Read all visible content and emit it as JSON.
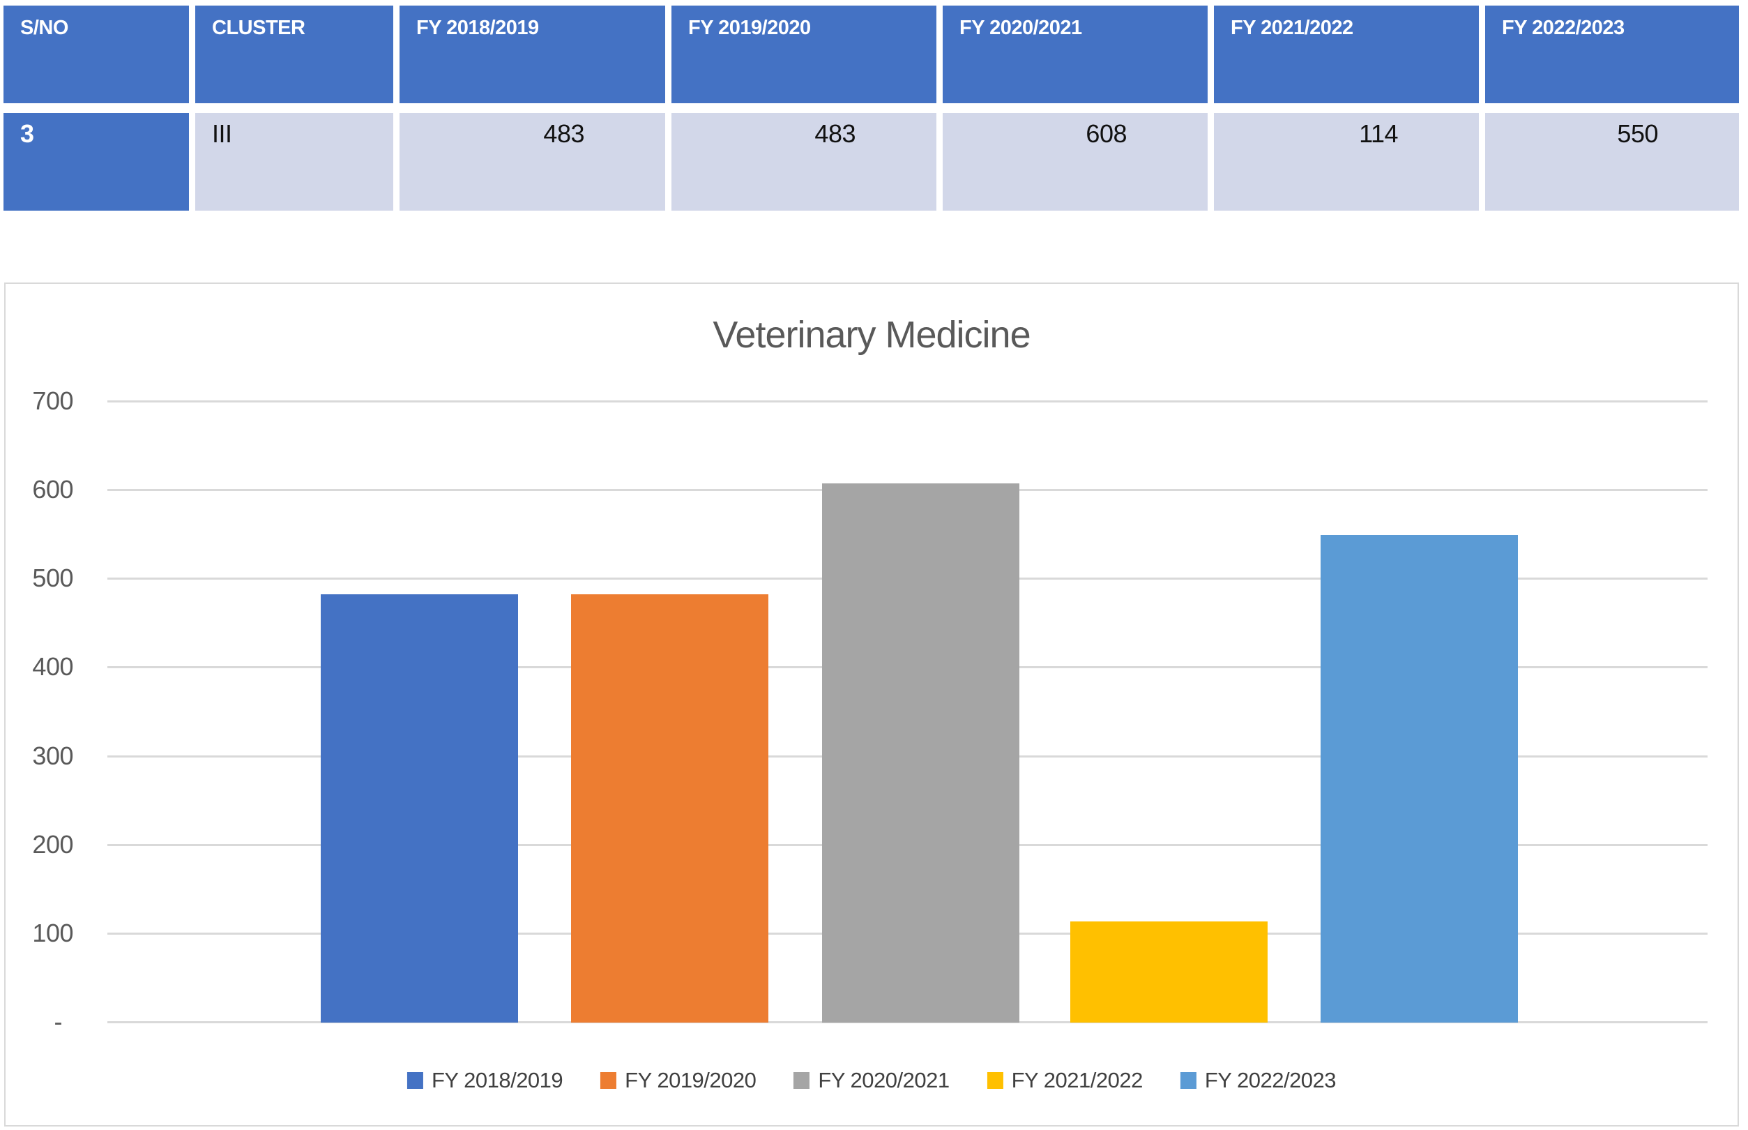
{
  "table": {
    "headers": [
      "S/NO",
      "CLUSTER",
      "FY 2018/2019",
      "FY 2019/2020",
      "FY 2020/2021",
      "FY 2021/2022",
      "FY 2022/2023"
    ],
    "row": {
      "sno": "3",
      "cluster": "III",
      "values": [
        "483",
        "483",
        "608",
        "114",
        "550"
      ]
    },
    "header_bg": "#4472C4",
    "band_bg": "#D2D7E9"
  },
  "chart_data": {
    "type": "bar",
    "title": "Veterinary Medicine",
    "categories": [
      "Veterinary Medicine"
    ],
    "series": [
      {
        "name": "FY 2018/2019",
        "values": [
          483
        ],
        "color": "#4472C4"
      },
      {
        "name": "FY 2019/2020",
        "values": [
          483
        ],
        "color": "#ED7D31"
      },
      {
        "name": "FY 2020/2021",
        "values": [
          608
        ],
        "color": "#A5A5A5"
      },
      {
        "name": "FY 2021/2022",
        "values": [
          114
        ],
        "color": "#FFC000"
      },
      {
        "name": "FY 2022/2023",
        "values": [
          550
        ],
        "color": "#5B9BD5"
      }
    ],
    "xlabel": "",
    "ylabel": "",
    "ylim": [
      0,
      700
    ],
    "yticks": [
      {
        "value": 700,
        "label": "700"
      },
      {
        "value": 600,
        "label": "600"
      },
      {
        "value": 500,
        "label": "500"
      },
      {
        "value": 400,
        "label": "400"
      },
      {
        "value": 300,
        "label": "300"
      },
      {
        "value": 200,
        "label": "200"
      },
      {
        "value": 100,
        "label": "100"
      },
      {
        "value": 0,
        "label": "-"
      }
    ],
    "grid": true,
    "legend_position": "bottom",
    "gridline_color": "#D9D9D9",
    "axis_label_color": "#595959",
    "title_color": "#595959"
  }
}
